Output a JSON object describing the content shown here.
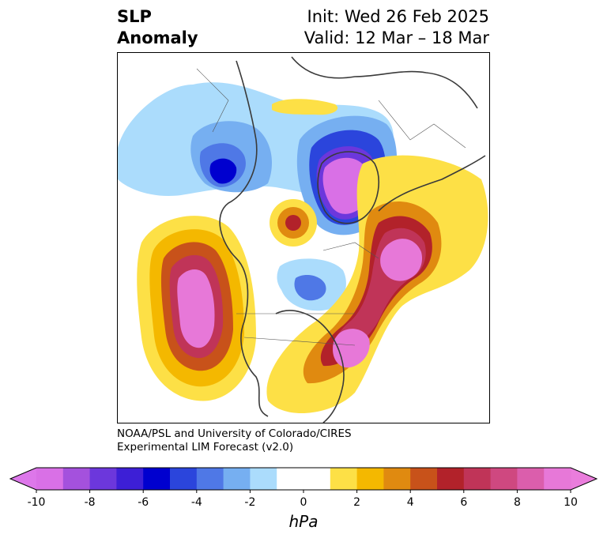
{
  "title": {
    "left_line1": "SLP",
    "left_line2": "Anomaly",
    "right_line1": "Init: Wed 26 Feb 2025",
    "right_line2": "Valid: 12 Mar – 18 Mar"
  },
  "credit": {
    "line1": "NOAA/PSL and University of Colorado/CIRES",
    "line2": "Experimental LIM Forecast (v2.0)"
  },
  "colorbar": {
    "unit": "hPa",
    "ticks": [
      "-10",
      "-8",
      "-6",
      "-4",
      "-2",
      "0",
      "2",
      "4",
      "6",
      "8",
      "10"
    ],
    "tick_values": [
      -10,
      -8,
      -6,
      -4,
      -2,
      0,
      2,
      4,
      6,
      8,
      10
    ],
    "bin_edges": [
      -10,
      -9,
      -8,
      -7,
      -6,
      -5,
      -4,
      -3,
      -2,
      -1,
      1,
      2,
      3,
      4,
      5,
      6,
      7,
      8,
      9,
      10
    ],
    "bin_colors": [
      "#d970e6",
      "#a451dd",
      "#6c37dc",
      "#3d1fd6",
      "#0000cf",
      "#2b45dc",
      "#4f78e6",
      "#76aff1",
      "#abdcfc",
      "#ffffff",
      "#fde046",
      "#f4b800",
      "#e08a10",
      "#c8521a",
      "#b2222a",
      "#c03458",
      "#cf4880",
      "#db5eac",
      "#e778d8"
    ],
    "under_color": "#dd77ea",
    "over_color": "#ea7ddc"
  },
  "colors": {
    "coastline": "#3a3a3a",
    "frame": "#000000"
  }
}
